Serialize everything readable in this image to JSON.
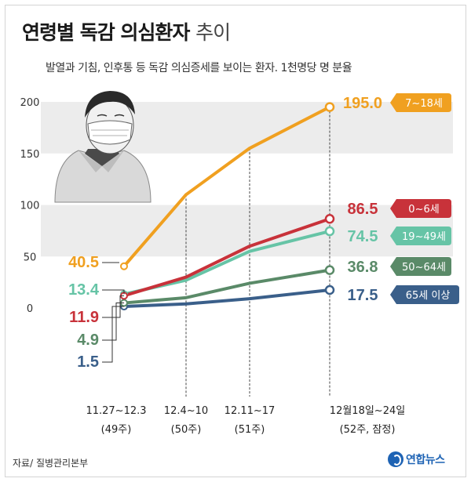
{
  "title_main": "연령별 독감 의심환자",
  "title_suffix": "추이",
  "subtitle": "발열과 기침, 인후통 등 독감 의심증세를 보이는 환자. 1천명당 명 분율",
  "source": "자료/ 질병관리본부",
  "logo_text": "연합뉴스",
  "chart_data": {
    "type": "line",
    "title": "연령별 독감 의심환자 추이",
    "subtitle": "발열과 기침, 인후통 등 독감 의심증세를 보이는 환자. 1천명당 명 분율",
    "categories": [
      {
        "line1": "11.27~12.3",
        "line2": "(49주)"
      },
      {
        "line1": "12.4~10",
        "line2": "(50주)"
      },
      {
        "line1": "12.11~17",
        "line2": "(51주)"
      },
      {
        "line1": "12월18일~24일",
        "line2": "(52주, 잠정)"
      }
    ],
    "ylim": [
      0,
      200
    ],
    "yticks": [
      "0",
      "50",
      "100",
      "150",
      "200"
    ],
    "series": [
      {
        "name": "7~18세",
        "color": "#f0a020",
        "values": [
          40.5,
          110,
          155,
          195.0
        ],
        "start_label": "40.5",
        "end_label": "195.0"
      },
      {
        "name": "0~6세",
        "color": "#c8323a",
        "values": [
          11.9,
          30,
          60,
          86.5
        ],
        "start_label": "11.9",
        "end_label": "86.5"
      },
      {
        "name": "19~49세",
        "color": "#66c4a6",
        "values": [
          13.4,
          27,
          55,
          74.5
        ],
        "start_label": "13.4",
        "end_label": "74.5"
      },
      {
        "name": "50~64세",
        "color": "#5a8a68",
        "values": [
          4.9,
          10,
          24,
          36.8
        ],
        "start_label": "4.9",
        "end_label": "36.8"
      },
      {
        "name": "65세 이상",
        "color": "#3a5f8a",
        "values": [
          1.5,
          4,
          9,
          17.5
        ],
        "start_label": "1.5",
        "end_label": "17.5"
      }
    ]
  }
}
